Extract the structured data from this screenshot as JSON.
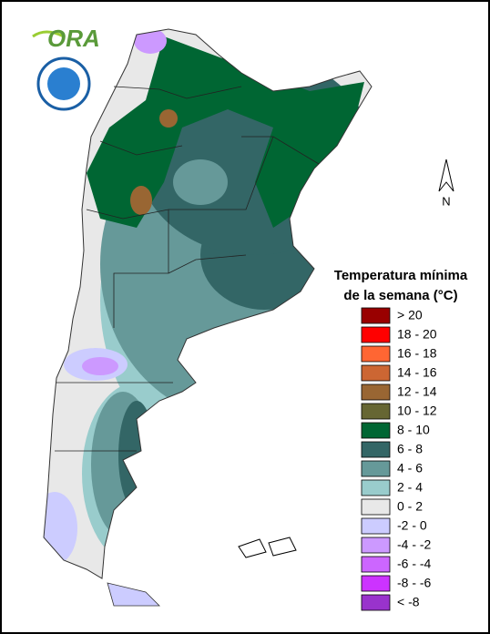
{
  "logo": {
    "text": "ORA"
  },
  "compass": {
    "label": "N"
  },
  "legend": {
    "title": [
      "Temperatura mínima",
      "de la semana (°C)"
    ],
    "items": [
      {
        "label": "> 20",
        "color": "#990000"
      },
      {
        "label": "18 - 20",
        "color": "#ff0000"
      },
      {
        "label": "16 - 18",
        "color": "#ff6633"
      },
      {
        "label": "14 - 16",
        "color": "#cc6633"
      },
      {
        "label": "12 - 14",
        "color": "#996633"
      },
      {
        "label": "10 - 12",
        "color": "#666633"
      },
      {
        "label": "8 - 10",
        "color": "#006633"
      },
      {
        "label": "6 - 8",
        "color": "#336666"
      },
      {
        "label": "4 - 6",
        "color": "#669999"
      },
      {
        "label": "2 - 4",
        "color": "#99cccc"
      },
      {
        "label": "0 - 2",
        "color": "#e8e8e8"
      },
      {
        "label": "-2 - 0",
        "color": "#ccccff"
      },
      {
        "label": "-4 - -2",
        "color": "#cc99ff"
      },
      {
        "label": "-6 - -4",
        "color": "#cc66ff"
      },
      {
        "label": "-8 - -6",
        "color": "#cc33ff"
      },
      {
        "label": "< -8",
        "color": "#9933cc"
      }
    ]
  }
}
